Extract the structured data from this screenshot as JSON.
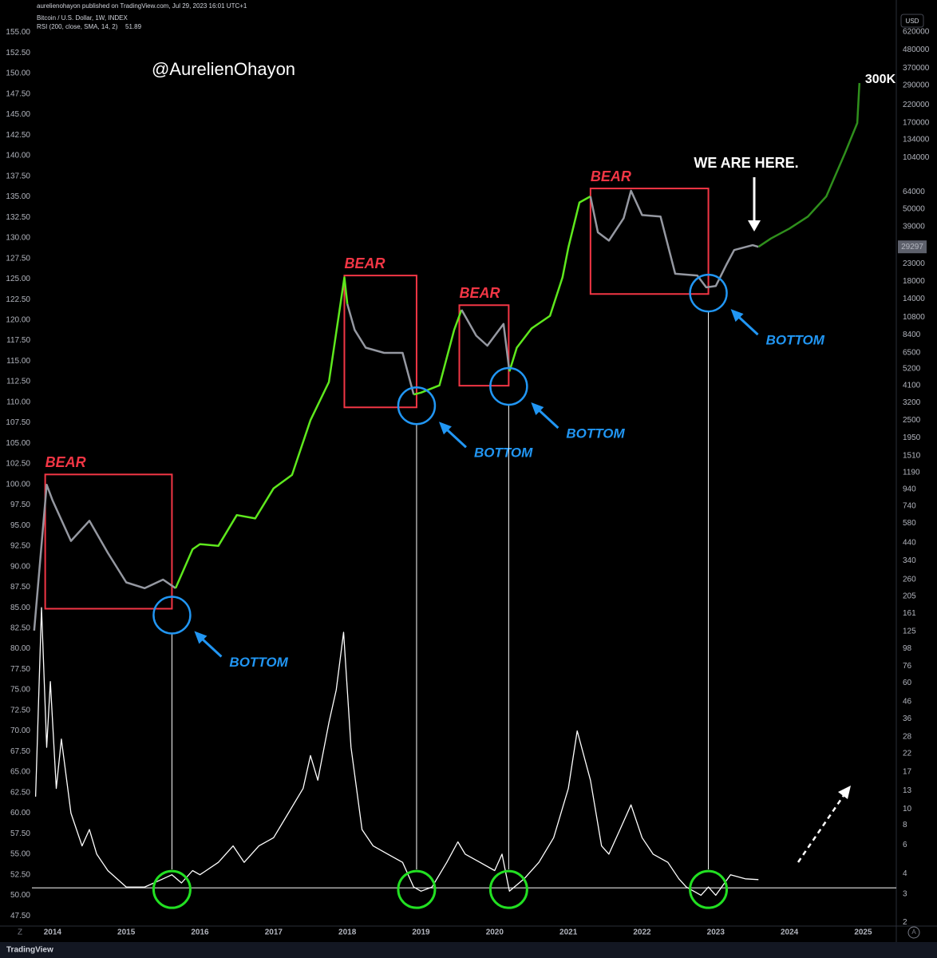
{
  "chart_data": {
    "type": "line",
    "published": "aurelienohayon published on TradingView.com, Jul 29, 2023 16:01 UTC+1",
    "currency": "USD",
    "footer": "TradingView",
    "last_price": 29297,
    "xlim": [
      2013.72,
      2025.45
    ],
    "xticks": [
      2014,
      2015,
      2016,
      2017,
      2018,
      2019,
      2020,
      2021,
      2022,
      2023,
      2024,
      2025
    ],
    "ylim": [
      46.25,
      157
    ],
    "yticks": [
      {
        "value": 47.5,
        "label": "47.50"
      },
      {
        "value": 50,
        "label": "50.00"
      },
      {
        "value": 52.5,
        "label": "52.50"
      },
      {
        "value": 55,
        "label": "55.00"
      },
      {
        "value": 57.5,
        "label": "57.50"
      },
      {
        "value": 60,
        "label": "60.00"
      },
      {
        "value": 62.5,
        "label": "62.50"
      },
      {
        "value": 65,
        "label": "65.00"
      },
      {
        "value": 67.5,
        "label": "67.50"
      },
      {
        "value": 70,
        "label": "70.00"
      },
      {
        "value": 72.5,
        "label": "72.50"
      },
      {
        "value": 75,
        "label": "75.00"
      },
      {
        "value": 77.5,
        "label": "77.50"
      },
      {
        "value": 80,
        "label": "80.00"
      },
      {
        "value": 82.5,
        "label": "82.50"
      },
      {
        "value": 85,
        "label": "85.00"
      },
      {
        "value": 87.5,
        "label": "87.50"
      },
      {
        "value": 90,
        "label": "90.00"
      },
      {
        "value": 92.5,
        "label": "92.50"
      },
      {
        "value": 95,
        "label": "95.00"
      },
      {
        "value": 97.5,
        "label": "97.50"
      },
      {
        "value": 100,
        "label": "100.00"
      },
      {
        "value": 102.5,
        "label": "102.50"
      },
      {
        "value": 105,
        "label": "105.00"
      },
      {
        "value": 107.5,
        "label": "107.50"
      },
      {
        "value": 110,
        "label": "110.00"
      },
      {
        "value": 112.5,
        "label": "112.50"
      },
      {
        "value": 115,
        "label": "115.00"
      },
      {
        "value": 117.5,
        "label": "117.50"
      },
      {
        "value": 120,
        "label": "120.00"
      },
      {
        "value": 122.5,
        "label": "122.50"
      },
      {
        "value": 125,
        "label": "125.00"
      },
      {
        "value": 127.5,
        "label": "127.50"
      },
      {
        "value": 130,
        "label": "130.00"
      },
      {
        "value": 132.5,
        "label": "132.50"
      },
      {
        "value": 135,
        "label": "135.00"
      },
      {
        "value": 137.5,
        "label": "137.50"
      },
      {
        "value": 140,
        "label": "140.00"
      },
      {
        "value": 142.5,
        "label": "142.50"
      },
      {
        "value": 145,
        "label": "145.00"
      },
      {
        "value": 147.5,
        "label": "147.50"
      },
      {
        "value": 150,
        "label": "150.00"
      },
      {
        "value": 152.5,
        "label": "152.50"
      },
      {
        "value": 155,
        "label": "155.00"
      }
    ],
    "y2lim": [
      1.9,
      777000
    ],
    "y2log": true,
    "y2ticks": [
      620000,
      480000,
      370000,
      290000,
      220000,
      170000,
      134000,
      104000,
      64000,
      50000,
      39000,
      23000,
      18000,
      14000,
      10800,
      8400,
      6500,
      5200,
      4100,
      3200,
      2500,
      1950,
      1510,
      1190,
      940,
      740,
      580,
      440,
      340,
      260,
      205,
      161,
      125,
      98,
      76,
      60,
      46,
      36,
      28,
      22,
      17,
      13,
      10,
      8,
      6,
      4,
      3,
      2
    ],
    "series": [
      {
        "name": "Bitcoin / U.S. Dollar, 1W, INDEX",
        "axis": "y2",
        "color": "#9598a1",
        "x": [
          2013.75,
          2013.92,
          2014.0,
          2014.25,
          2014.5,
          2014.75,
          2015.0,
          2015.25,
          2015.5,
          2015.67
        ],
        "values": [
          126,
          1000,
          800,
          450,
          600,
          380,
          250,
          230,
          260,
          230
        ]
      },
      {
        "axis": "y2",
        "color": "#5ee81d",
        "x": [
          2015.67,
          2015.9,
          2016.0,
          2016.25,
          2016.5,
          2016.75,
          2017.0,
          2017.25,
          2017.5,
          2017.75,
          2017.96,
          2018.0
        ],
        "values": [
          230,
          400,
          430,
          420,
          650,
          620,
          950,
          1150,
          2500,
          4300,
          19000,
          13000
        ]
      },
      {
        "axis": "y2",
        "color": "#9598a1",
        "x": [
          2018.0,
          2018.1,
          2018.25,
          2018.5,
          2018.75,
          2018.9
        ],
        "values": [
          13000,
          9000,
          7000,
          6500,
          6500,
          3600
        ]
      },
      {
        "axis": "y2",
        "color": "#5ee81d",
        "x": [
          2018.9,
          2019.0,
          2019.25,
          2019.45,
          2019.55
        ],
        "values": [
          3600,
          3700,
          4100,
          9000,
          12000
        ]
      },
      {
        "axis": "y2",
        "color": "#9598a1",
        "x": [
          2019.55,
          2019.75,
          2019.9,
          2020.12,
          2020.2
        ],
        "values": [
          12000,
          8300,
          7200,
          9800,
          5000
        ]
      },
      {
        "axis": "y2",
        "color": "#5ee81d",
        "x": [
          2020.2,
          2020.3,
          2020.5,
          2020.75,
          2020.92,
          2021.0,
          2021.15,
          2021.3
        ],
        "values": [
          5000,
          7000,
          9200,
          11000,
          19000,
          29000,
          55000,
          60000
        ]
      },
      {
        "axis": "y2",
        "color": "#9598a1",
        "x": [
          2021.3,
          2021.4,
          2021.55,
          2021.75,
          2021.85,
          2022.0,
          2022.25,
          2022.45,
          2022.75,
          2022.87,
          2023.0,
          2023.15,
          2023.25,
          2023.5,
          2023.58
        ],
        "values": [
          60000,
          36000,
          32000,
          44000,
          65000,
          46000,
          45000,
          20000,
          19500,
          16500,
          16800,
          23000,
          28000,
          30000,
          29297
        ]
      },
      {
        "axis": "y2",
        "color": "#2f8f1c",
        "x": [
          2023.58,
          2023.75,
          2024.0,
          2024.25,
          2024.5,
          2024.75,
          2024.92,
          2024.95
        ],
        "values": [
          29297,
          33000,
          38000,
          45000,
          60000,
          110000,
          170000,
          300000
        ]
      },
      {
        "name": "RSI (200, close, SMA, 14, 2)",
        "last_value": 51.89,
        "color": "#ffffff",
        "x": [
          2013.77,
          2013.85,
          2013.92,
          2013.97,
          2014.05,
          2014.12,
          2014.25,
          2014.4,
          2014.5,
          2014.6,
          2014.75,
          2015.0,
          2015.25,
          2015.5,
          2015.62,
          2015.75,
          2015.9,
          2016.0,
          2016.25,
          2016.45,
          2016.6,
          2016.8,
          2017.0,
          2017.2,
          2017.4,
          2017.5,
          2017.6,
          2017.75,
          2017.85,
          2017.95,
          2018.05,
          2018.2,
          2018.35,
          2018.55,
          2018.75,
          2018.9,
          2019.0,
          2019.15,
          2019.35,
          2019.5,
          2019.6,
          2019.8,
          2020.0,
          2020.1,
          2020.2,
          2020.4,
          2020.6,
          2020.8,
          2021.0,
          2021.12,
          2021.3,
          2021.45,
          2021.55,
          2021.7,
          2021.85,
          2022.0,
          2022.15,
          2022.35,
          2022.5,
          2022.6,
          2022.8,
          2022.9,
          2023.0,
          2023.2,
          2023.4,
          2023.58
        ],
        "values": [
          62,
          85,
          68,
          76,
          63,
          69,
          60,
          56,
          58,
          55,
          53,
          51,
          51,
          52,
          52.5,
          51.5,
          53,
          52.5,
          54,
          56,
          54,
          56,
          57,
          60,
          63,
          67,
          64,
          71,
          75,
          82,
          68,
          58,
          56,
          55,
          54,
          51,
          50.5,
          51,
          54,
          56.5,
          55,
          54,
          53,
          55,
          50.5,
          52,
          54,
          57,
          63,
          70,
          64,
          56,
          55,
          58,
          61,
          57,
          55,
          54,
          52,
          51,
          50,
          51,
          50,
          52.5,
          52,
          51.9
        ]
      }
    ],
    "reference_line": 50.9,
    "annotations": {
      "handle": "@AurelienOhayon",
      "bears": [
        {
          "label": "BEAR",
          "x": [
            2013.9,
            2015.62
          ],
          "y2": [
            172,
            1157
          ]
        },
        {
          "label": "BEAR",
          "x": [
            2017.96,
            2018.94
          ],
          "y2": [
            3000,
            19500
          ]
        },
        {
          "label": "BEAR",
          "x": [
            2019.52,
            2020.19
          ],
          "y2": [
            4080,
            12800
          ]
        },
        {
          "label": "BEAR",
          "x": [
            2021.3,
            2022.9
          ],
          "y2": [
            15000,
            67100
          ]
        }
      ],
      "bottoms": [
        {
          "label": "BOTTOM",
          "x": 2015.62,
          "y2": 157
        },
        {
          "label": "BOTTOM",
          "x": 2018.94,
          "y2": 3070
        },
        {
          "label": "BOTTOM",
          "x": 2020.19,
          "y2": 4040
        },
        {
          "label": "BOTTOM",
          "x": 2022.9,
          "y2": 15200
        }
      ],
      "we_are_here": "WE ARE HERE.",
      "target": "300K"
    }
  }
}
